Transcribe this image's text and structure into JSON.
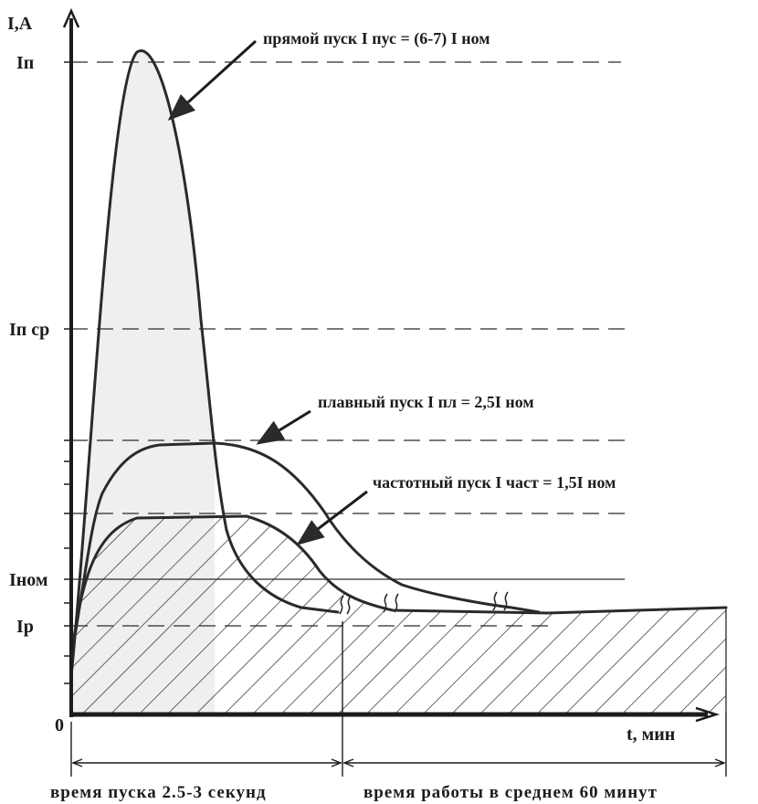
{
  "axes": {
    "y_label": "I,A",
    "x_label": "t, мин",
    "origin_label": "0",
    "y_levels": [
      "Iп",
      "Iп ср",
      "Iном",
      "Iр"
    ]
  },
  "annotations": {
    "direct_start": "прямой пуск  I пус = (6-7) I ном",
    "soft_start": "плавный пуск  I пл = 2,5I  ном",
    "frequency_start": "частотный пуск  I част = 1,5I  ном"
  },
  "bottom": {
    "start_time": "время пуска 2.5-3 секунд",
    "work_time": "время работы в среднем 60 минут"
  },
  "colors": {
    "line": "#2a2a2a",
    "fill": "#efefef",
    "hatch": "#2a2a2a"
  }
}
